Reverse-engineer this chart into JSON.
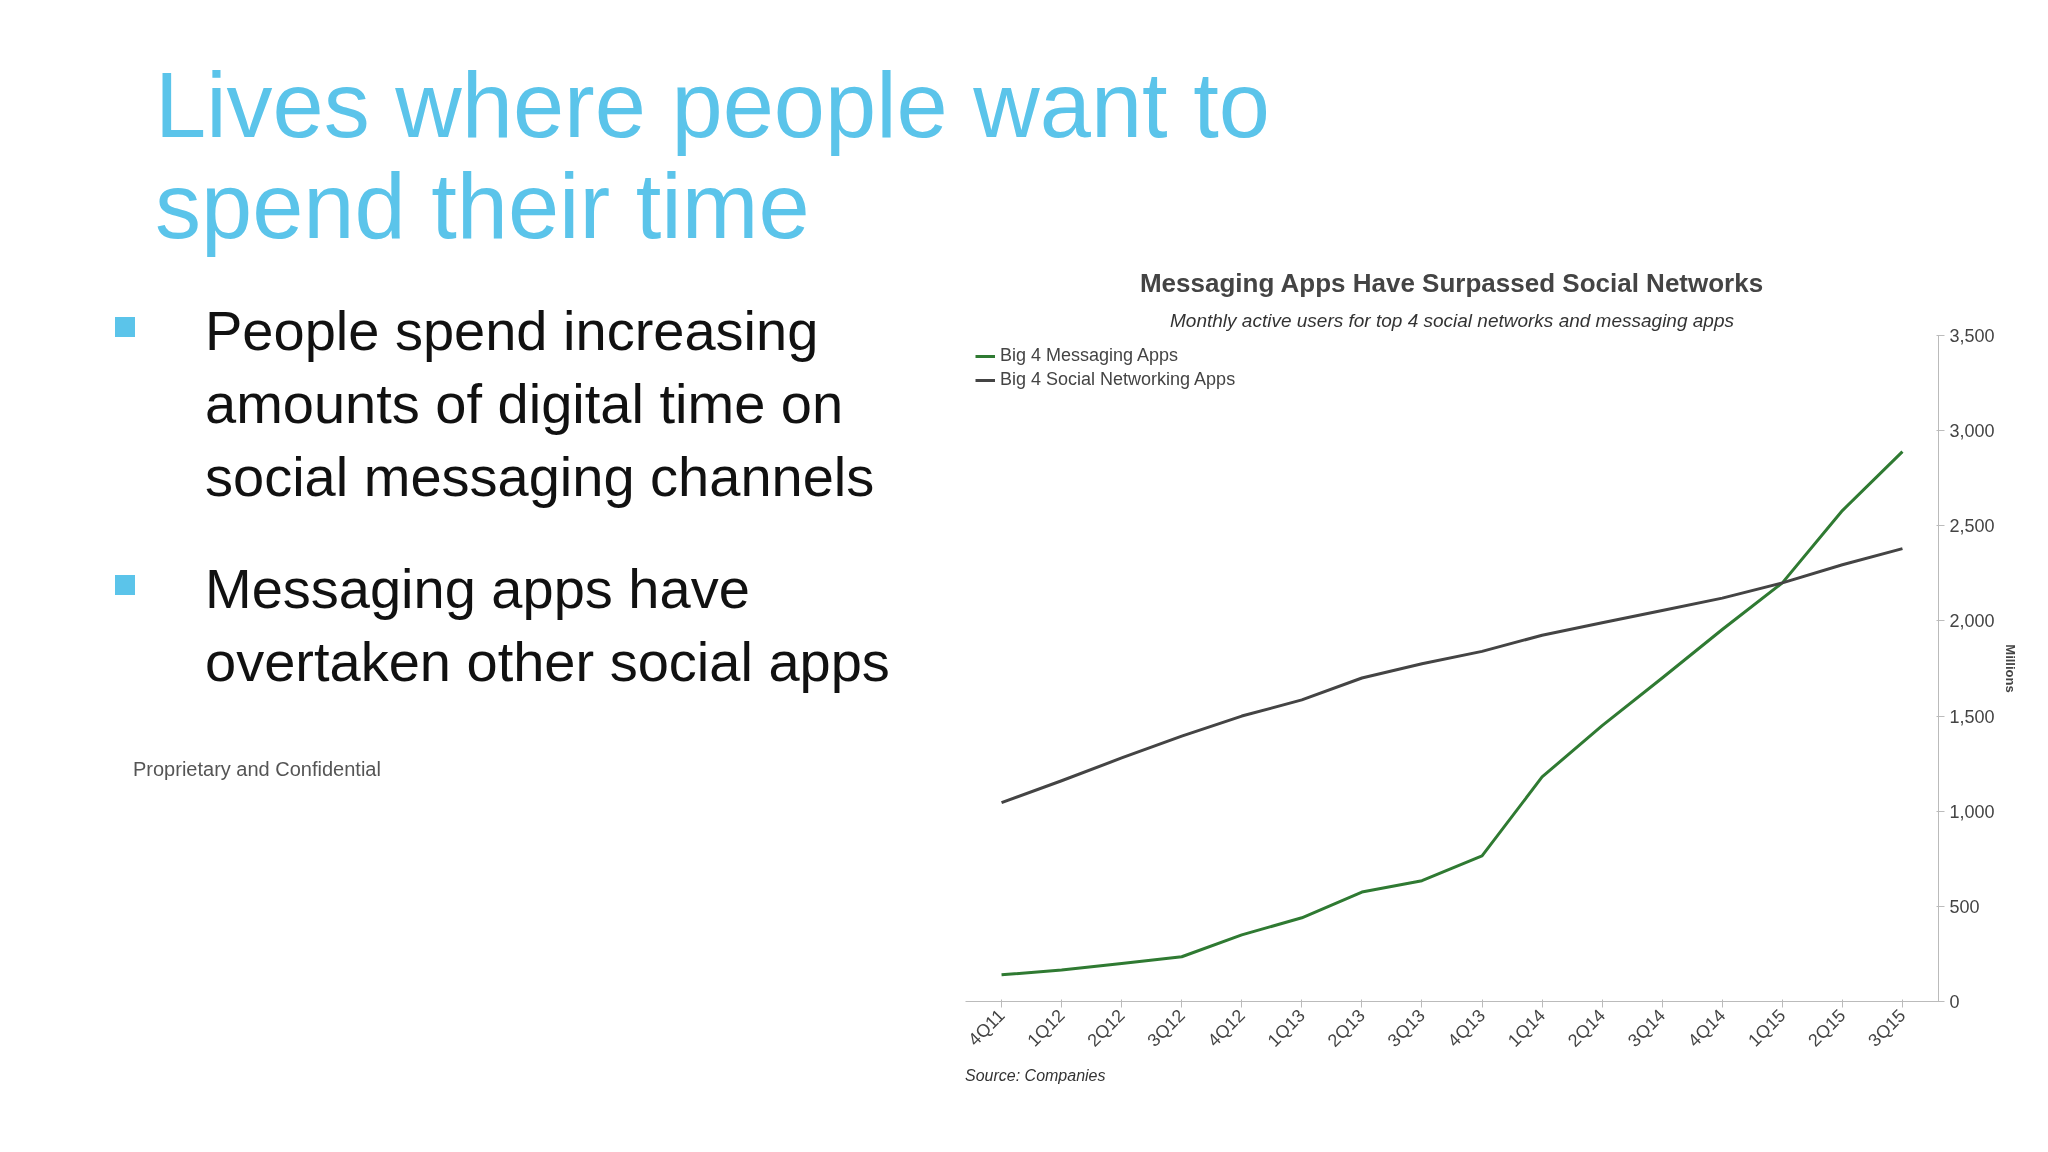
{
  "chart_data": {
    "type": "line",
    "title": "Messaging Apps Have Surpassed Social Networks",
    "subtitle": "Monthly active users for top 4 social networks and messaging apps",
    "ylabel": "Millions",
    "categories": [
      "4Q11",
      "1Q12",
      "2Q12",
      "3Q12",
      "4Q12",
      "1Q13",
      "2Q13",
      "3Q13",
      "4Q13",
      "1Q14",
      "2Q14",
      "3Q14",
      "4Q14",
      "1Q15",
      "2Q15",
      "3Q15"
    ],
    "series": [
      {
        "name": "Big 4 Messaging Apps",
        "color": "#2f7a32",
        "values": [
          140,
          165,
          200,
          235,
          350,
          440,
          575,
          635,
          765,
          1180,
          1450,
          1700,
          1955,
          2200,
          2580,
          2890
        ]
      },
      {
        "name": "Big 4 Social Networking Apps",
        "color": "#444444",
        "values": [
          1045,
          1160,
          1280,
          1395,
          1500,
          1585,
          1700,
          1775,
          1840,
          1925,
          1990,
          2055,
          2120,
          2200,
          2295,
          2380
        ]
      }
    ],
    "ylim": [
      0,
      3500
    ],
    "yticks": [
      {
        "value": 0,
        "label": "0"
      },
      {
        "value": 500,
        "label": "500"
      },
      {
        "value": 1000,
        "label": "1,000"
      },
      {
        "value": 1500,
        "label": "1,500"
      },
      {
        "value": 2000,
        "label": "2,000"
      },
      {
        "value": 2500,
        "label": "2,500"
      },
      {
        "value": 3000,
        "label": "3,000"
      },
      {
        "value": 3500,
        "label": "3,500"
      }
    ],
    "grid": false,
    "legend": "top left",
    "marker": "none",
    "line_style": "solid",
    "annotations": [
      "Lives where people want to spend their time",
      "People spend increasing amounts of digital time on social messaging channels",
      "Messaging apps have overtaken other social apps",
      "Source: Companies",
      "Proprietary and Confidential"
    ]
  }
}
